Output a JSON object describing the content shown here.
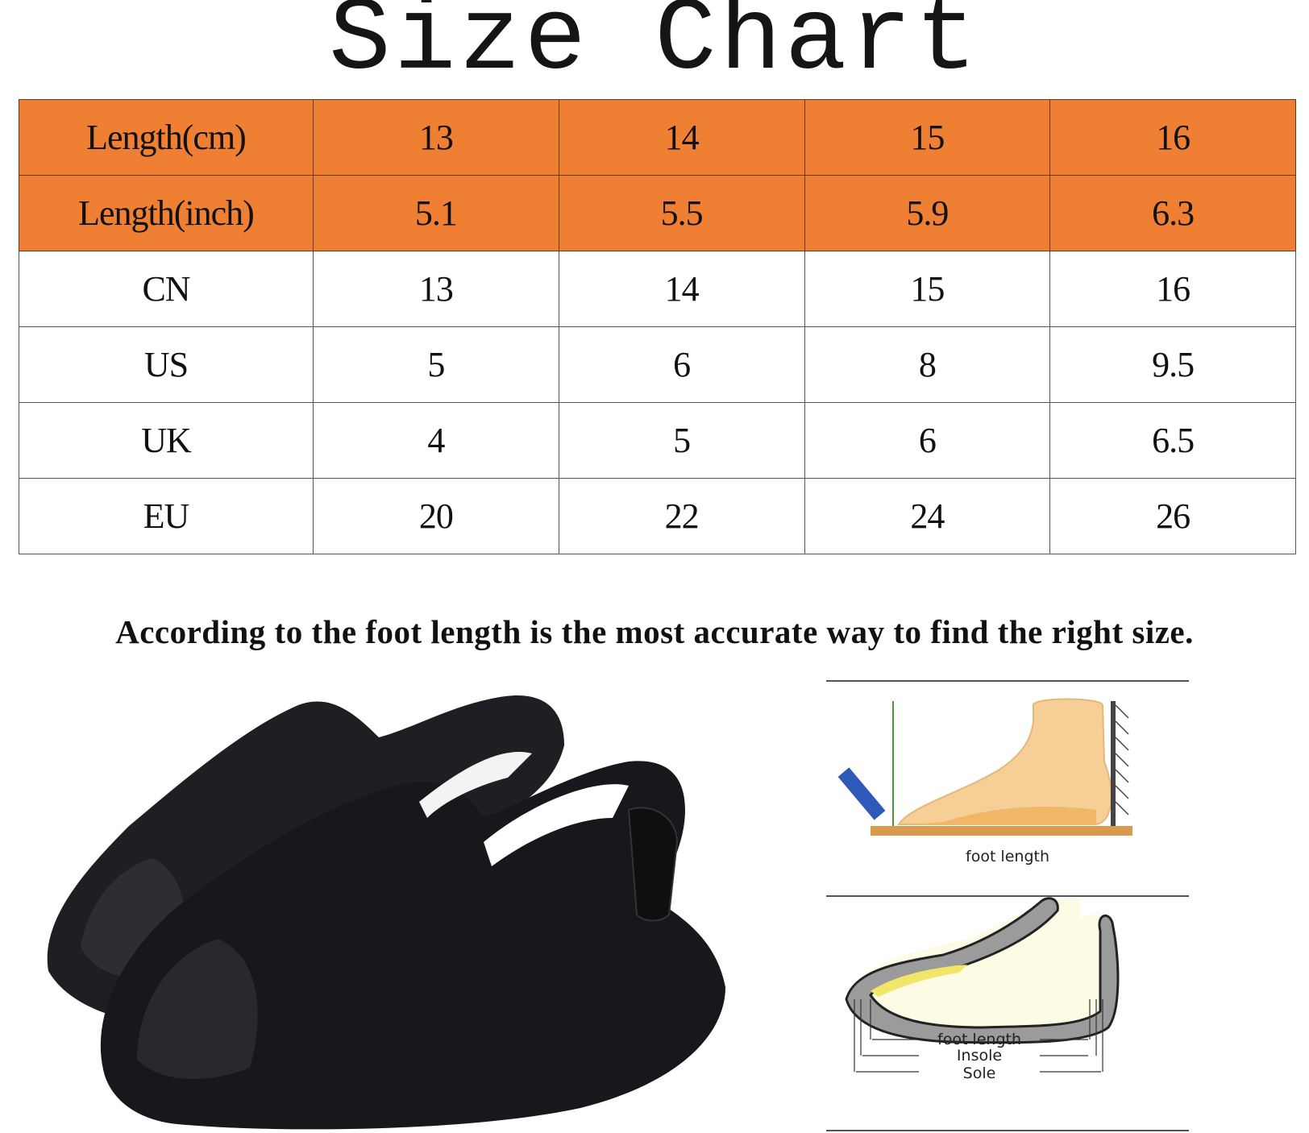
{
  "title": "Size Chart",
  "table": {
    "rows": [
      {
        "label": "Length(cm)",
        "values": [
          "13",
          "14",
          "15",
          "16"
        ],
        "highlight": true
      },
      {
        "label": "Length(inch)",
        "values": [
          "5.1",
          "5.5",
          "5.9",
          "6.3"
        ],
        "highlight": true
      },
      {
        "label": "CN",
        "values": [
          "13",
          "14",
          "15",
          "16"
        ],
        "highlight": false
      },
      {
        "label": "US",
        "values": [
          "5",
          "6",
          "8",
          "9.5"
        ],
        "highlight": false
      },
      {
        "label": "UK",
        "values": [
          "4",
          "5",
          "6",
          "6.5"
        ],
        "highlight": false
      },
      {
        "label": "EU",
        "values": [
          "20",
          "22",
          "24",
          "26"
        ],
        "highlight": false
      }
    ],
    "highlight_color": "#ee7f33"
  },
  "note": "According to the foot length is the most  accurate way to find the right size.",
  "diagram": {
    "top_label": "foot length",
    "bottom_labels": [
      "foot length",
      "Insole",
      "Sole"
    ]
  },
  "product_image": "black kids slide sandals with back strap"
}
